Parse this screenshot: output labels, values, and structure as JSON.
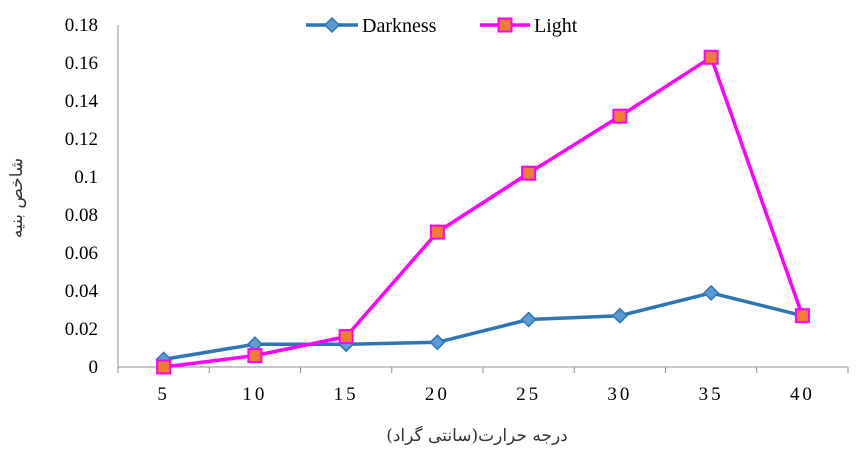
{
  "chart_data": {
    "type": "line",
    "title": "",
    "xlabel": "درجه حرارت(سانتی گراد)",
    "ylabel": "شاخص بنیه",
    "categories": [
      "5",
      "10",
      "15",
      "20",
      "25",
      "30",
      "35",
      "40"
    ],
    "x": [
      5,
      10,
      15,
      20,
      25,
      30,
      35,
      40
    ],
    "ylim": [
      0,
      0.18
    ],
    "yticks": [
      "0",
      "0.02",
      "0.04",
      "0.06",
      "0.08",
      "0.1",
      "0.12",
      "0.14",
      "0.16",
      "0.18"
    ],
    "grid": false,
    "legend_position": "top-center",
    "series": [
      {
        "name": "Darkness",
        "color": "#2E75B6",
        "marker_color": "#5B9BD5",
        "marker": "diamond",
        "values": [
          0.004,
          0.012,
          0.012,
          0.013,
          0.025,
          0.027,
          0.039,
          0.027
        ]
      },
      {
        "name": "Light",
        "color": "#FF00FF",
        "marker_color": "#ED7D31",
        "marker": "square",
        "values": [
          0.0,
          0.006,
          0.016,
          0.071,
          0.102,
          0.132,
          0.163,
          0.027
        ]
      }
    ]
  }
}
